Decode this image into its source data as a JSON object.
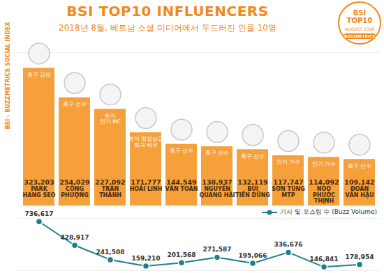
{
  "chart_data": [
    {
      "type": "bar",
      "title": "BSI TOP10 INFLUENCERS",
      "subtitle": "2018년 8월, 베트남 소셜 미디어에서 두드러진 인물 10명",
      "badge": [
        "BSI TOP10",
        "AUGUST 2018",
        "BUZZMETRICS"
      ],
      "ylabel": "BSI - BUZZMETRICS SOCIAL INDEX",
      "categories": [
        "PARK\nHANG SEO",
        "CÔNG\nPHƯỢNG",
        "TRẤN\nTHÀNH",
        "HOÀI LINH",
        "VĂN TOÀN",
        "NGUYỄN\nQUANG HẢI",
        "BÙI\nTIẾN DŨNG",
        "SƠN TÙNG\nMTP",
        "NOO\nPHƯỚC\nTHỊNH",
        "ĐOÀN\nVĂN HẬU"
      ],
      "annotations": [
        "축구 감독",
        "축구 선수",
        "현지\n인기 MC",
        "현지 최정상급\n희극 배우",
        "축구 선수",
        "축구 선수",
        "축구 선수",
        "인기 가수",
        "인기 가수",
        "축구 선수"
      ],
      "values": [
        323203,
        254029,
        227092,
        171777,
        144549,
        138937,
        132119,
        117747,
        114092,
        109142
      ],
      "value_labels": [
        "323,203",
        "254,029",
        "227,092",
        "171,777",
        "144,549",
        "138,937",
        "132,119",
        "117,747",
        "114,092",
        "109,142"
      ],
      "color": "#f5a03a",
      "ylim": [
        0,
        360000
      ],
      "yticks": [],
      "tick_labels": false,
      "data_labels": true
    },
    {
      "type": "line",
      "categories": [
        "PARK\nHANG SEO",
        "CÔNG\nPHƯỢNG",
        "TRẤN\nTHÀNH",
        "HOÀI LINH",
        "VĂN TOÀN",
        "NGUYỄN\nQUANG HẢI",
        "BÙI\nTIẾN DŨNG",
        "SƠN TÙNG\nMTP",
        "NOO\nPHƯỚC\nTHỊNH",
        "ĐOÀN\nVĂN HẬU"
      ],
      "series": [
        {
          "name": "기사 및 포스팅 수 (Buzz Volume)",
          "color": "#1f7f8f",
          "marker": "circle",
          "values": [
            736617,
            428917,
            241508,
            159210,
            201568,
            271587,
            195066,
            336676,
            146841,
            178954
          ],
          "value_labels": [
            "736,617",
            "428,917",
            "241,508",
            "159,210",
            "201,568",
            "271,587",
            "195,066",
            "336,676",
            "146,841",
            "178,954"
          ]
        }
      ],
      "ylim": [
        100000,
        780000
      ],
      "yticks": [],
      "tick_labels": false,
      "data_labels": true,
      "legend": "top-right"
    }
  ]
}
